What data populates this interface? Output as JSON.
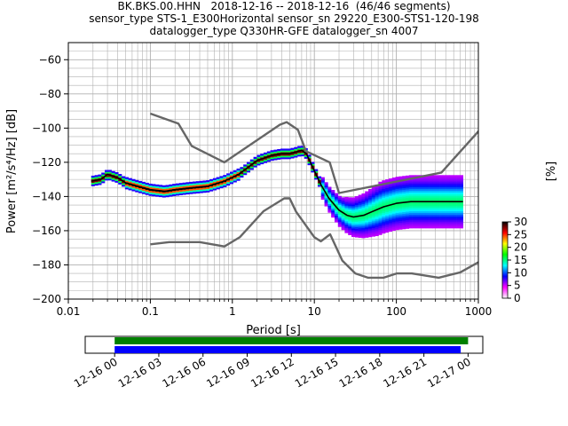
{
  "title_lines": [
    "BK.BKS.00.HHN   2018-12-16 -- 2018-12-16  (46/46 segments)",
    "sensor_type STS-1_E300Horizontal sensor_sn 29220_E300-STS1-120-198",
    "datalogger_type Q330HR-GFE datalogger_sn 4007"
  ],
  "chart_data": [
    {
      "type": "heatmap",
      "title": "BK.BKS.00.HHN   2018-12-16 -- 2018-12-16  (46/46 segments)",
      "xlabel": "Period [s]",
      "ylabel": "Power [m²/s⁴/Hz] [dB]",
      "xscale": "log",
      "xlim": [
        0.01,
        1000
      ],
      "ylim": [
        -200,
        -50
      ],
      "grid": true,
      "xticks": [
        0.01,
        0.1,
        1,
        10,
        100,
        1000
      ],
      "xtick_labels": [
        "0.01",
        "0.1",
        "1",
        "10",
        "100",
        "1000"
      ],
      "yticks": [
        -200,
        -180,
        -160,
        -140,
        -120,
        -100,
        -80,
        -60
      ],
      "ytick_labels": [
        "−200",
        "−180",
        "−160",
        "−140",
        "−120",
        "−100",
        "−80",
        "−60"
      ],
      "colorbar": {
        "label": "[%]",
        "range": [
          0,
          30
        ],
        "ticks": [
          0,
          5,
          10,
          15,
          20,
          25,
          30
        ],
        "tick_labels": [
          "0",
          "5",
          "10",
          "15",
          "20",
          "25",
          "30"
        ],
        "colors": [
          "#ffffff",
          "#ff00ff",
          "#0000ff",
          "#00ffff",
          "#00ff00",
          "#ffff00",
          "#ff0000",
          "#000000"
        ]
      },
      "series": [
        {
          "role": "mean",
          "color": "#000000",
          "x": [
            0.019,
            0.025,
            0.03,
            0.04,
            0.05,
            0.07,
            0.1,
            0.15,
            0.2,
            0.3,
            0.5,
            0.8,
            1.2,
            2,
            3,
            4,
            5,
            6,
            7,
            8,
            10,
            12,
            15,
            20,
            25,
            30,
            40,
            50,
            70,
            100,
            150,
            200,
            300,
            400,
            650
          ],
          "y": [
            -131,
            -130,
            -127,
            -129,
            -132,
            -134,
            -136,
            -137,
            -136,
            -135,
            -134,
            -131,
            -127,
            -119,
            -116,
            -115,
            -115,
            -114,
            -113,
            -115,
            -125,
            -133,
            -141,
            -148,
            -151,
            -152,
            -151,
            -149,
            -146,
            -144,
            -143,
            -143,
            -143,
            -143,
            -143
          ]
        },
        {
          "role": "noise-model-high",
          "color": "#666666",
          "x": [
            0.1,
            0.22,
            0.32,
            0.8,
            3.8,
            4.6,
            6.3,
            7.9,
            15.4,
            20,
            354.8,
            10000
          ],
          "y": [
            -91.5,
            -97.4,
            -110.5,
            -120,
            -98,
            -96.5,
            -101,
            -113.5,
            -120,
            -138,
            -126,
            -48.5
          ]
        },
        {
          "role": "noise-model-low",
          "color": "#666666",
          "x": [
            0.1,
            0.17,
            0.4,
            0.8,
            1.24,
            2.4,
            4.3,
            5,
            6,
            10,
            12,
            15.6,
            21.9,
            31.6,
            45,
            70,
            101,
            154,
            328,
            600,
            10000
          ],
          "y": [
            -168,
            -166.7,
            -166.7,
            -169.2,
            -163.7,
            -148.6,
            -141.1,
            -141.1,
            -149,
            -163.8,
            -166.2,
            -162.1,
            -177.5,
            -185,
            -187.5,
            -187.5,
            -185,
            -185,
            -187.5,
            -184.4,
            -151.9
          ]
        }
      ]
    },
    {
      "type": "bar",
      "role": "data-coverage",
      "x_tick_labels": [
        "12-16 00",
        "12-16 03",
        "12-16 06",
        "12-16 09",
        "12-16 12",
        "12-16 15",
        "12-16 18",
        "12-16 21",
        "12-17 00"
      ],
      "xlim_hours": [
        -2,
        25
      ],
      "series": [
        {
          "role": "data",
          "color": "#008000",
          "start_hour": 0,
          "end_hour": 24.0
        },
        {
          "role": "psd",
          "color": "#0000ff",
          "start_hour": 0,
          "end_hour": 23.5
        }
      ]
    }
  ]
}
